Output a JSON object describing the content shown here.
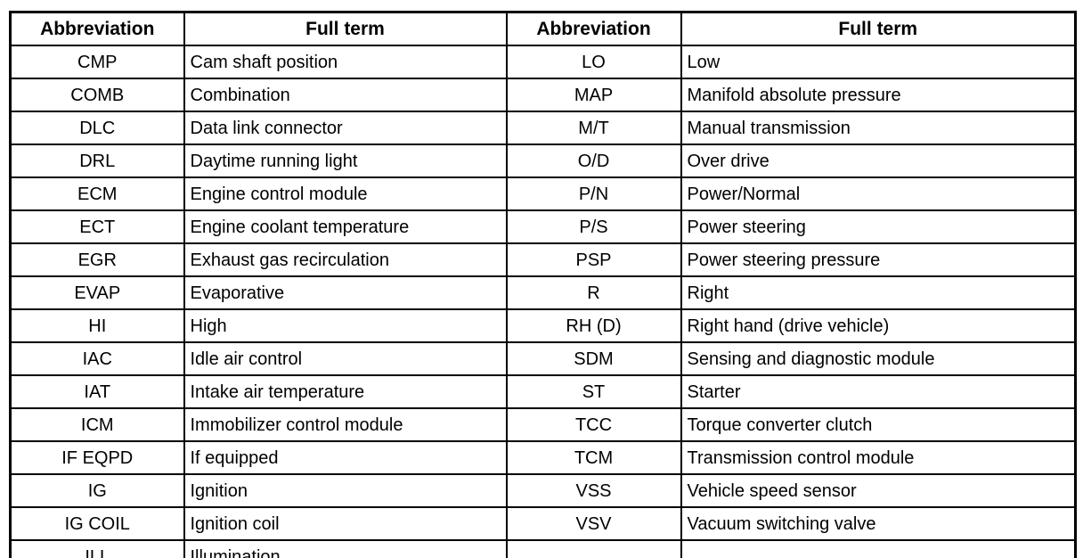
{
  "table": {
    "headers": [
      "Abbreviation",
      "Full term",
      "Abbreviation",
      "Full term"
    ],
    "rows": [
      [
        "CMP",
        "Cam shaft position",
        "LO",
        "Low"
      ],
      [
        "COMB",
        "Combination",
        "MAP",
        "Manifold absolute pressure"
      ],
      [
        "DLC",
        "Data link connector",
        "M/T",
        "Manual transmission"
      ],
      [
        "DRL",
        "Daytime running light",
        "O/D",
        "Over drive"
      ],
      [
        "ECM",
        "Engine control module",
        "P/N",
        "Power/Normal"
      ],
      [
        "ECT",
        "Engine coolant temperature",
        "P/S",
        "Power steering"
      ],
      [
        "EGR",
        "Exhaust gas recirculation",
        "PSP",
        "Power steering pressure"
      ],
      [
        "EVAP",
        "Evaporative",
        "R",
        "Right"
      ],
      [
        "HI",
        "High",
        "RH (D)",
        "Right hand (drive vehicle)"
      ],
      [
        "IAC",
        "Idle air control",
        "SDM",
        "Sensing and diagnostic module"
      ],
      [
        "IAT",
        "Intake air temperature",
        "ST",
        "Starter"
      ],
      [
        "ICM",
        "Immobilizer control module",
        "TCC",
        "Torque converter clutch"
      ],
      [
        "IF EQPD",
        "If equipped",
        "TCM",
        "Transmission control module"
      ],
      [
        "IG",
        "Ignition",
        "VSS",
        "Vehicle speed sensor"
      ],
      [
        "IG COIL",
        "Ignition coil",
        "VSV",
        "Vacuum switching valve"
      ],
      [
        "ILL",
        "Illumination",
        "",
        ""
      ]
    ],
    "colors": {
      "border": "#000000",
      "text": "#000000",
      "background": "#ffffff"
    }
  }
}
